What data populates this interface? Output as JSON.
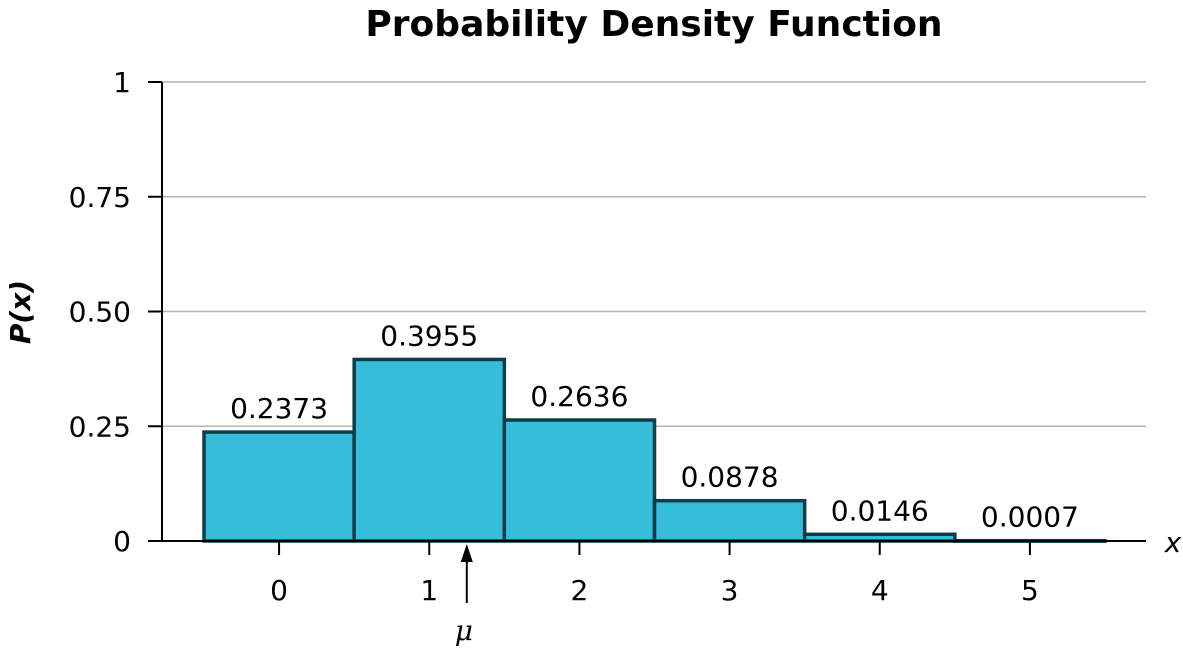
{
  "chart_data": {
    "type": "bar",
    "title": "Probability Density Function",
    "xlabel": "x",
    "ylabel": "P(x)",
    "categories": [
      "0",
      "1",
      "2",
      "3",
      "4",
      "5"
    ],
    "values": [
      0.2373,
      0.3955,
      0.2636,
      0.0878,
      0.0146,
      0.0007
    ],
    "data_labels": [
      "0.2373",
      "0.3955",
      "0.2636",
      "0.0878",
      "0.0146",
      "0.0007"
    ],
    "y_ticks": [
      {
        "value": 0,
        "label": "0"
      },
      {
        "value": 0.25,
        "label": "0.25"
      },
      {
        "value": 0.5,
        "label": "0.50"
      },
      {
        "value": 0.75,
        "label": "0.75"
      },
      {
        "value": 1,
        "label": "1"
      }
    ],
    "ylim": [
      0,
      1
    ],
    "xlim": [
      -0.5,
      5.5
    ],
    "grid": true,
    "bar_color": "#35bdda",
    "bar_edge_color": "#0d3d4a",
    "grid_color": "#b4b4b4",
    "mean_marker": {
      "label": "μ",
      "x": 1.25
    }
  }
}
